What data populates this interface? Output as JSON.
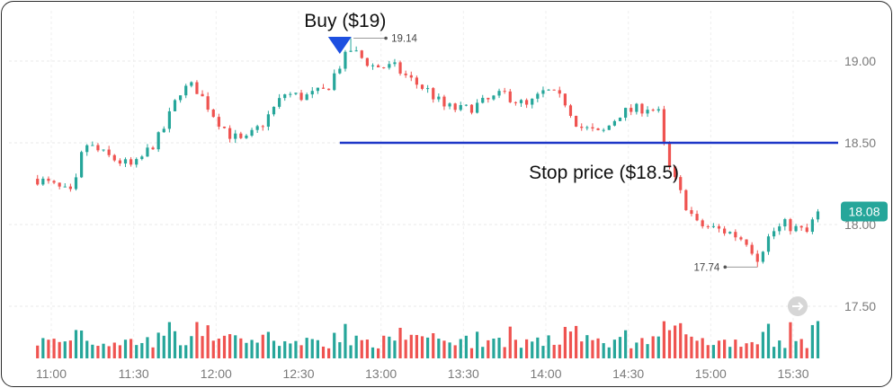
{
  "chart_data": {
    "type": "candlestick",
    "x_ticks": [
      "11:00",
      "11:30",
      "12:00",
      "12:30",
      "13:00",
      "13:30",
      "14:00",
      "14:30",
      "15:00",
      "15:30"
    ],
    "y_ticks": [
      "19.00",
      "18.50",
      "18.00",
      "17.50"
    ],
    "ylim": [
      17.5,
      19.2
    ],
    "grid": true,
    "colors": {
      "up": "#26a69a",
      "down": "#ef5350",
      "stop_line": "#1d36c7",
      "buy_marker": "#1d4fe0",
      "last_badge": "#26a69a"
    },
    "last_price": "18.08",
    "high_marker": {
      "label": "19.14",
      "value": 19.14,
      "time": "12:50"
    },
    "low_marker": {
      "label": "17.74",
      "value": 17.74,
      "time": "15:17"
    },
    "buy_annotation": {
      "label": "Buy ($19)",
      "price": 19,
      "time": "12:45"
    },
    "stop_line": {
      "label": "Stop price ($18.5)",
      "price": 18.5,
      "from_time": "12:45"
    },
    "session": {
      "start": "10:55",
      "end": "15:39",
      "bar_minutes": 2
    },
    "close_anchors": [
      [
        "10:55",
        18.28
      ],
      [
        "11:08",
        18.18
      ],
      [
        "11:12",
        18.5
      ],
      [
        "11:20",
        18.42
      ],
      [
        "11:30",
        18.35
      ],
      [
        "11:40",
        18.55
      ],
      [
        "11:47",
        18.82
      ],
      [
        "11:52",
        18.85
      ],
      [
        "12:00",
        18.65
      ],
      [
        "12:05",
        18.55
      ],
      [
        "12:10",
        18.5
      ],
      [
        "12:17",
        18.62
      ],
      [
        "12:25",
        18.8
      ],
      [
        "12:32",
        18.78
      ],
      [
        "12:40",
        18.82
      ],
      [
        "12:44",
        18.95
      ],
      [
        "12:49",
        19.07
      ],
      [
        "12:52",
        19.03
      ],
      [
        "12:57",
        18.97
      ],
      [
        "13:05",
        18.96
      ],
      [
        "13:12",
        18.87
      ],
      [
        "13:17",
        18.82
      ],
      [
        "13:23",
        18.72
      ],
      [
        "13:30",
        18.7
      ],
      [
        "13:38",
        18.75
      ],
      [
        "13:45",
        18.8
      ],
      [
        "13:53",
        18.72
      ],
      [
        "14:00",
        18.82
      ],
      [
        "14:07",
        18.75
      ],
      [
        "14:12",
        18.6
      ],
      [
        "14:20",
        18.55
      ],
      [
        "14:27",
        18.68
      ],
      [
        "14:37",
        18.72
      ],
      [
        "14:41",
        18.68
      ],
      [
        "14:44",
        18.38
      ],
      [
        "14:50",
        18.15
      ],
      [
        "14:55",
        18.0
      ],
      [
        "15:00",
        17.98
      ],
      [
        "15:07",
        17.95
      ],
      [
        "15:13",
        17.9
      ],
      [
        "15:17",
        17.8
      ],
      [
        "15:22",
        17.95
      ],
      [
        "15:27",
        18.0
      ],
      [
        "15:35",
        17.95
      ],
      [
        "15:39",
        18.08
      ]
    ]
  }
}
